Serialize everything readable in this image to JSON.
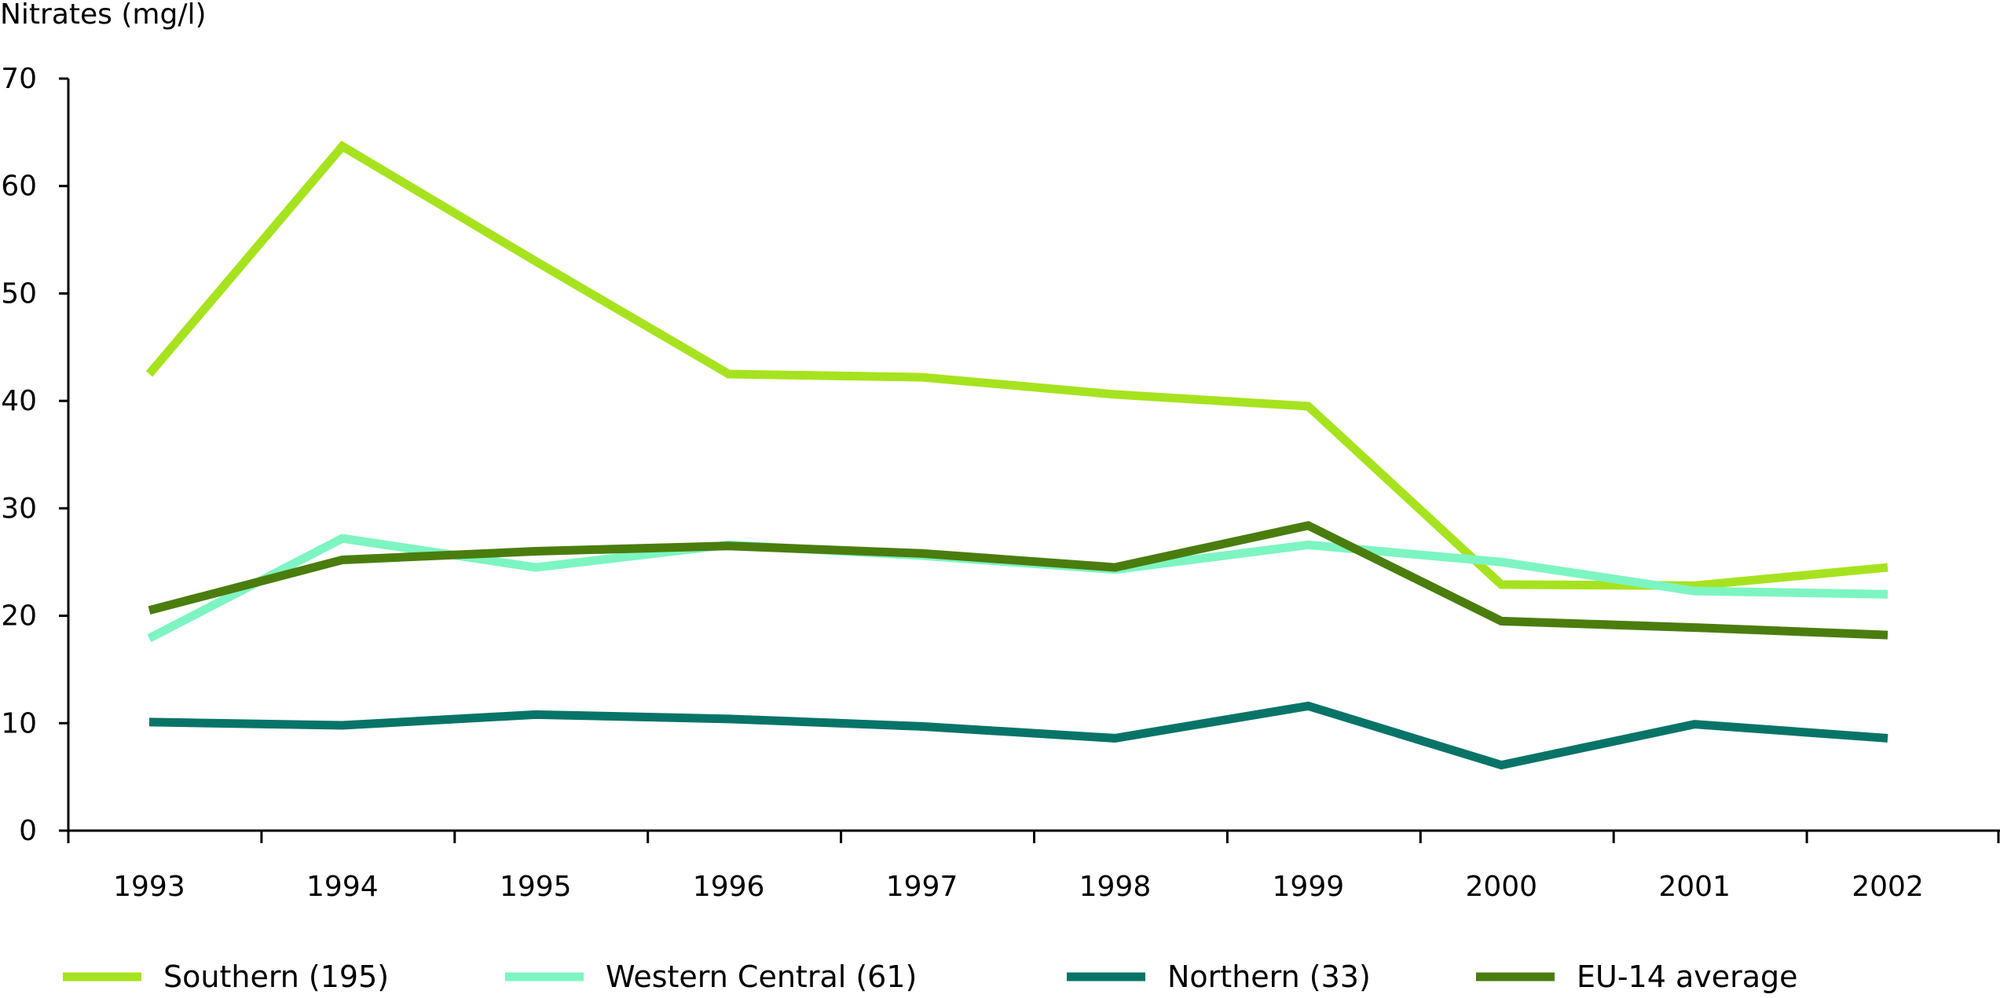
{
  "chart_data": {
    "type": "line",
    "title": "",
    "xlabel": "",
    "ylabel": "Nitrates (mg/l)",
    "ylim": [
      0,
      70
    ],
    "yticks": [
      "0",
      "10",
      "20",
      "30",
      "40",
      "50",
      "60",
      "70"
    ],
    "categories": [
      "1993",
      "1994",
      "1995",
      "1996",
      "1997",
      "1998",
      "1999",
      "2000",
      "2001",
      "2002"
    ],
    "grid": false,
    "legend_position": "bottom",
    "series": [
      {
        "name": "Southern (195)",
        "color": "#a6e31e",
        "values": [
          42.5,
          63.7,
          53.0,
          42.5,
          42.2,
          40.6,
          39.5,
          22.9,
          22.8,
          24.5
        ]
      },
      {
        "name": "Western Central (61)",
        "color": "#7df5c2",
        "values": [
          17.9,
          27.2,
          24.5,
          26.6,
          25.6,
          24.3,
          26.6,
          25.0,
          22.3,
          22.0
        ]
      },
      {
        "name": "Northern (33)",
        "color": "#087468",
        "values": [
          10.1,
          9.8,
          10.8,
          10.4,
          9.7,
          8.6,
          11.6,
          6.1,
          9.9,
          8.6
        ]
      },
      {
        "name": "EU-14 average",
        "color": "#4a7d0e",
        "values": [
          20.5,
          25.2,
          26.0,
          26.5,
          25.8,
          24.5,
          28.4,
          19.5,
          18.9,
          18.2
        ]
      }
    ]
  }
}
